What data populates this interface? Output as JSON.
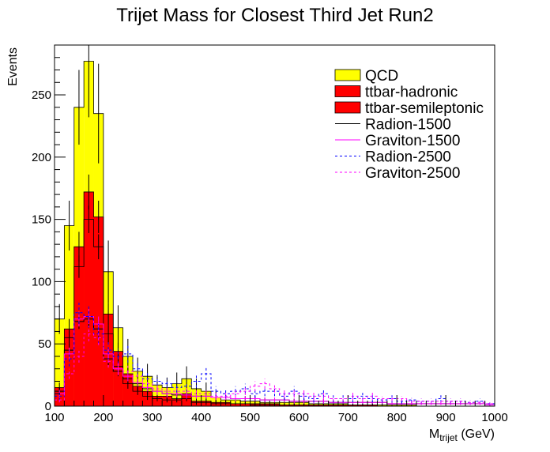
{
  "chart_data": {
    "type": "bar",
    "title": "Trijet Mass for Closest Third Jet Run2",
    "xlabel_main": "M",
    "xlabel_sub": "trijet",
    "xlabel_unit": " (GeV)",
    "ylabel": "Events",
    "xlim": [
      100,
      1000
    ],
    "ylim": [
      0,
      290
    ],
    "x_ticks": [
      100,
      200,
      300,
      400,
      500,
      600,
      700,
      800,
      900,
      1000
    ],
    "y_ticks": [
      0,
      50,
      100,
      150,
      200,
      250
    ],
    "bin_width": 20,
    "bin_edges_start": [
      100,
      120,
      140,
      160,
      180,
      200,
      220,
      240,
      260,
      280,
      300,
      320,
      340,
      360,
      380,
      400,
      420,
      440,
      460,
      480,
      500,
      520,
      540,
      560,
      580,
      600,
      620,
      640,
      660,
      680,
      700,
      720,
      740,
      760,
      780,
      800,
      820,
      840,
      860,
      880,
      900,
      920,
      940,
      960,
      980
    ],
    "series": [
      {
        "name": "QCD",
        "style": "fill",
        "color": "#ffff00",
        "values": [
          70,
          145,
          240,
          277,
          235,
          108,
          63,
          40,
          28,
          24,
          17,
          15,
          18,
          22,
          14,
          12,
          7,
          5,
          5,
          4,
          4,
          3,
          3,
          3,
          3,
          3,
          2,
          2,
          2,
          2,
          1,
          1,
          1,
          1,
          1,
          1,
          1,
          0,
          0,
          0,
          0,
          0,
          0,
          0,
          0
        ],
        "errors": [
          12,
          20,
          30,
          45,
          40,
          25,
          18,
          14,
          11,
          10,
          8,
          8,
          9,
          10,
          8,
          7,
          5,
          4,
          4,
          4,
          4,
          3,
          3,
          3,
          3,
          3,
          3,
          3,
          3,
          3,
          2,
          2,
          2,
          2,
          2,
          2,
          2,
          0,
          0,
          0,
          0,
          0,
          0,
          0,
          0
        ]
      },
      {
        "name": "ttbar-hadronic",
        "style": "fill",
        "color": "#ff0000",
        "values": [
          15,
          62,
          128,
          172,
          152,
          74,
          44,
          26,
          16,
          12,
          8,
          8,
          6,
          10,
          4,
          4,
          3,
          3,
          2,
          2,
          2,
          2,
          2,
          1,
          1,
          1,
          1,
          1,
          1,
          1,
          1,
          1,
          1,
          0,
          0,
          0,
          0,
          0,
          0,
          0,
          0,
          0,
          0,
          0,
          0
        ],
        "errors": [
          4,
          8,
          12,
          14,
          13,
          9,
          7,
          5,
          4,
          3,
          3,
          3,
          3,
          3,
          2,
          2,
          2,
          2,
          2,
          2,
          2,
          2,
          2,
          1,
          1,
          1,
          1,
          1,
          1,
          1,
          1,
          1,
          1,
          0,
          0,
          0,
          0,
          0,
          0,
          0,
          0,
          0,
          0,
          0,
          0
        ]
      },
      {
        "name": "ttbar-semileptonic",
        "style": "fill",
        "color": "#ff0000",
        "values": [
          12,
          55,
          112,
          150,
          128,
          58,
          32,
          18,
          12,
          8,
          6,
          5,
          5,
          6,
          3,
          3,
          2,
          2,
          2,
          2,
          1,
          1,
          1,
          1,
          1,
          1,
          1,
          1,
          1,
          1,
          1,
          0,
          0,
          0,
          0,
          0,
          0,
          0,
          0,
          0,
          0,
          0,
          0,
          0,
          0
        ],
        "errors": [
          3,
          6,
          9,
          11,
          10,
          7,
          5,
          4,
          3,
          3,
          2,
          2,
          2,
          2,
          2,
          2,
          1,
          1,
          1,
          1,
          1,
          1,
          1,
          1,
          1,
          1,
          1,
          1,
          1,
          1,
          1,
          0,
          0,
          0,
          0,
          0,
          0,
          0,
          0,
          0,
          0,
          0,
          0,
          0,
          0
        ]
      },
      {
        "name": "Radion-1500",
        "style": "solid",
        "color": "#000000",
        "values": [
          12,
          45,
          68,
          70,
          62,
          38,
          28,
          22,
          18,
          14,
          12,
          10,
          9,
          9,
          8,
          8,
          7,
          7,
          6,
          6,
          6,
          5,
          5,
          5,
          4,
          4,
          4,
          4,
          3,
          3,
          3,
          3,
          3,
          3,
          2,
          2,
          2,
          2,
          2,
          2,
          2,
          2,
          2,
          2,
          1
        ],
        "errors": [
          3,
          5,
          6,
          6,
          6,
          5,
          4,
          4,
          3,
          3,
          3,
          3,
          3,
          3,
          2,
          2,
          2,
          2,
          2,
          2,
          2,
          2,
          2,
          2,
          2,
          2,
          2,
          2,
          1,
          1,
          1,
          1,
          1,
          1,
          1,
          1,
          1,
          1,
          1,
          1,
          1,
          1,
          1,
          1,
          1
        ]
      },
      {
        "name": "Graviton-1500",
        "style": "solid",
        "color": "#ff00ff",
        "values": [
          10,
          42,
          70,
          72,
          66,
          42,
          30,
          24,
          19,
          15,
          12,
          10,
          10,
          9,
          8,
          8,
          7,
          7,
          6,
          6,
          6,
          5,
          5,
          5,
          4,
          4,
          4,
          4,
          3,
          3,
          3,
          3,
          3,
          3,
          2,
          2,
          2,
          2,
          2,
          2,
          2,
          2,
          2,
          2,
          1
        ],
        "errors": [
          3,
          5,
          6,
          6,
          6,
          5,
          4,
          4,
          3,
          3,
          3,
          3,
          3,
          3,
          2,
          2,
          2,
          2,
          2,
          2,
          2,
          2,
          2,
          2,
          2,
          2,
          2,
          2,
          1,
          1,
          1,
          1,
          1,
          1,
          1,
          1,
          1,
          1,
          1,
          1,
          1,
          1,
          1,
          1,
          1
        ]
      },
      {
        "name": "Radion-2500",
        "style": "dashed",
        "color": "#0000ff",
        "values": [
          8,
          38,
          75,
          72,
          58,
          45,
          40,
          42,
          30,
          22,
          20,
          18,
          15,
          16,
          20,
          26,
          12,
          10,
          12,
          14,
          10,
          12,
          12,
          8,
          12,
          8,
          6,
          10,
          6,
          6,
          6,
          8,
          6,
          5,
          6,
          4,
          5,
          4,
          4,
          6,
          4,
          4,
          3,
          4,
          2
        ],
        "errors": [
          3,
          6,
          9,
          9,
          8,
          7,
          6,
          7,
          5,
          5,
          4,
          4,
          4,
          4,
          5,
          5,
          4,
          3,
          4,
          4,
          3,
          4,
          4,
          3,
          4,
          3,
          3,
          3,
          3,
          3,
          3,
          3,
          3,
          2,
          3,
          2,
          2,
          2,
          2,
          3,
          2,
          2,
          2,
          2,
          1
        ]
      },
      {
        "name": "Graviton-2500",
        "style": "dashed",
        "color": "#ff00ff",
        "values": [
          5,
          26,
          40,
          58,
          55,
          36,
          30,
          28,
          24,
          18,
          14,
          12,
          12,
          12,
          10,
          10,
          8,
          8,
          10,
          12,
          16,
          18,
          14,
          10,
          10,
          10,
          8,
          8,
          6,
          6,
          8,
          6,
          8,
          6,
          6,
          6,
          4,
          4,
          4,
          4,
          4,
          4,
          3,
          3,
          2
        ],
        "errors": [
          2,
          4,
          5,
          6,
          6,
          5,
          5,
          5,
          4,
          4,
          3,
          3,
          3,
          3,
          3,
          3,
          3,
          3,
          3,
          3,
          4,
          4,
          3,
          3,
          3,
          3,
          3,
          3,
          2,
          2,
          3,
          2,
          3,
          2,
          2,
          2,
          2,
          2,
          2,
          2,
          2,
          2,
          2,
          2,
          1
        ]
      }
    ],
    "legend_position": "top-right",
    "grid": false
  }
}
